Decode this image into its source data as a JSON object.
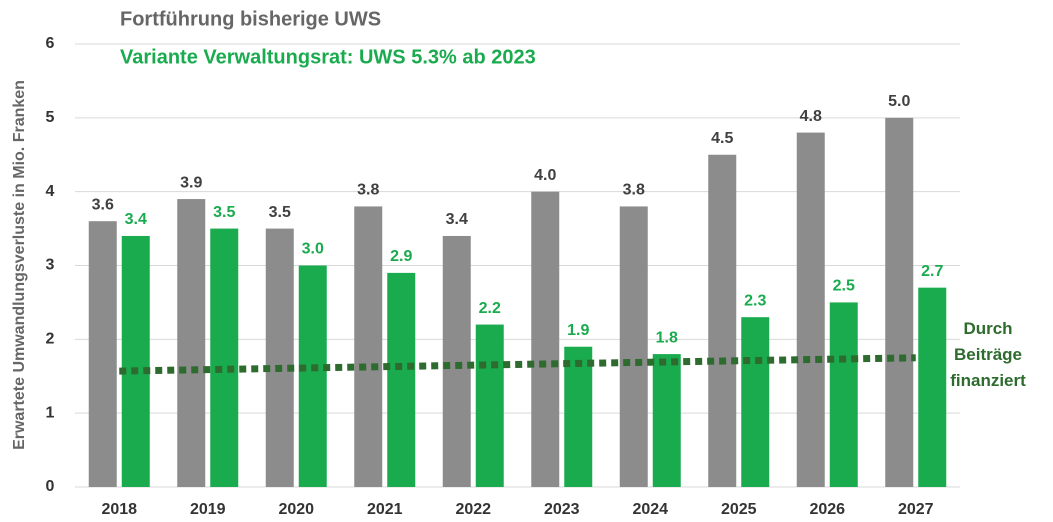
{
  "chart_data": {
    "type": "bar",
    "y_axis_label": "Erwartete Umwandlungsverluste in Mio. Franken",
    "categories": [
      "2018",
      "2019",
      "2020",
      "2021",
      "2022",
      "2023",
      "2024",
      "2025",
      "2026",
      "2027"
    ],
    "series": [
      {
        "name": "Fortführung bisherige UWS",
        "color": "#8c8c8c",
        "label_color": "#404040",
        "values": [
          3.6,
          3.9,
          3.5,
          3.8,
          3.4,
          4.0,
          3.8,
          4.5,
          4.8,
          5.0
        ],
        "value_labels": [
          "3.6",
          "3.9",
          "3.5",
          "3.8",
          "3.4",
          "4.0",
          "3.8",
          "4.5",
          "4.8",
          "5.0"
        ]
      },
      {
        "name": "Variante Verwaltungsrat: UWS 5.3% ab 2023",
        "color": "#1aab4f",
        "label_color": "#1aab4f",
        "values": [
          3.4,
          3.5,
          3.0,
          2.9,
          2.2,
          1.9,
          1.8,
          2.3,
          2.5,
          2.7
        ],
        "value_labels": [
          "3.4",
          "3.5",
          "3.0",
          "2.9",
          "2.2",
          "1.9",
          "1.8",
          "2.3",
          "2.5",
          "2.7"
        ]
      },
      {
        "name": "Durch Beiträge finanziert",
        "type": "line",
        "color": "#2e6b2e",
        "values": [
          1.57,
          1.59,
          1.61,
          1.63,
          1.65,
          1.67,
          1.69,
          1.71,
          1.73,
          1.75
        ]
      }
    ],
    "ylim": [
      0,
      6
    ],
    "yticks": [
      0,
      1,
      2,
      3,
      4,
      5,
      6
    ],
    "grid": true
  }
}
